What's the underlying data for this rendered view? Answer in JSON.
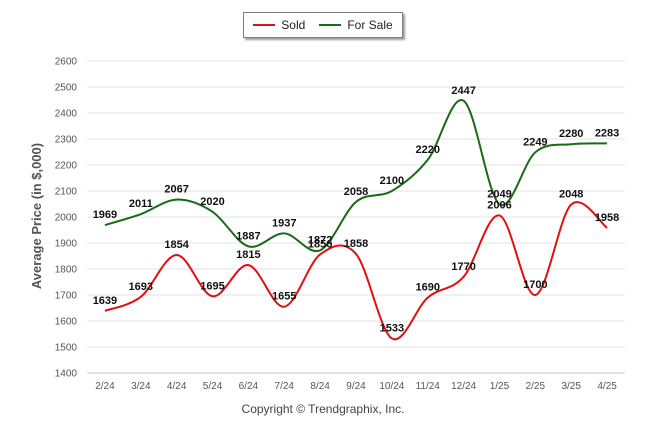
{
  "chart_data": {
    "type": "line",
    "title": "",
    "xlabel": "",
    "ylabel": "Average Price (in $,000)",
    "ylim": [
      1400,
      2600
    ],
    "yticks": [
      1400,
      1500,
      1600,
      1700,
      1800,
      1900,
      2000,
      2100,
      2200,
      2300,
      2400,
      2500,
      2600
    ],
    "grid": true,
    "legend": "top-center",
    "categories": [
      "2/24",
      "3/24",
      "4/24",
      "5/24",
      "6/24",
      "7/24",
      "8/24",
      "9/24",
      "10/24",
      "11/24",
      "12/24",
      "1/25",
      "2/25",
      "3/25",
      "4/25"
    ],
    "series": [
      {
        "name": "Sold",
        "color": "#e01010",
        "values": [
          1639,
          1693,
          1854,
          1695,
          1815,
          1655,
          1856,
          1858,
          1533,
          1690,
          1770,
          2006,
          1700,
          2048,
          1958
        ]
      },
      {
        "name": "For Sale",
        "color": "#1a6a1a",
        "values": [
          1969,
          2011,
          2067,
          2020,
          1887,
          1937,
          1872,
          2058,
          2100,
          2220,
          2447,
          2049,
          2249,
          2280,
          2283
        ]
      }
    ]
  },
  "footer": {
    "copyright": "Copyright © Trendgraphix, Inc."
  }
}
